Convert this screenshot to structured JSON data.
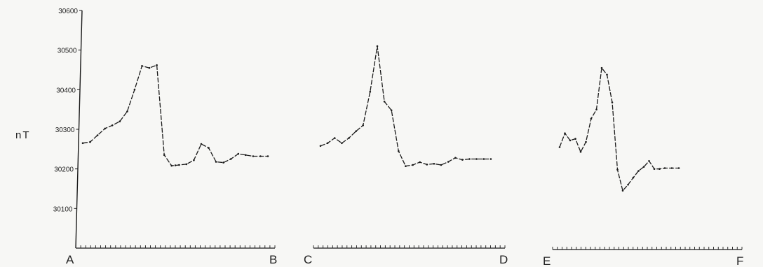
{
  "chart_data": {
    "type": "line",
    "title": "",
    "ylabel": "nT",
    "yticks": [
      "30100",
      "30200",
      "30300",
      "30400",
      "30500",
      "30600"
    ],
    "ylim": [
      30000,
      30600
    ],
    "grid": false,
    "colors": {
      "line": "#1a1a1a",
      "axis": "#1a1a1a"
    },
    "profiles": [
      {
        "start_label": "A",
        "end_label": "B",
        "ticks": 40,
        "x": [
          0,
          0.04,
          0.08,
          0.12,
          0.16,
          0.2,
          0.24,
          0.28,
          0.32,
          0.36,
          0.4,
          0.44,
          0.48,
          0.5,
          0.52,
          0.56,
          0.6,
          0.64,
          0.68,
          0.72,
          0.76,
          0.8,
          0.84,
          0.88,
          0.92,
          0.96,
          1.0
        ],
        "y": [
          30265,
          30268,
          30285,
          30302,
          30310,
          30320,
          30345,
          30400,
          30460,
          30455,
          30462,
          30235,
          30208,
          30209,
          30210,
          30212,
          30222,
          30263,
          30253,
          30218,
          30216,
          30225,
          30238,
          30235,
          30232,
          30232,
          30232
        ]
      },
      {
        "start_label": "C",
        "end_label": "D",
        "ticks": 40,
        "x": [
          0,
          0.04,
          0.08,
          0.12,
          0.16,
          0.2,
          0.24,
          0.28,
          0.32,
          0.36,
          0.4,
          0.44,
          0.48,
          0.52,
          0.56,
          0.6,
          0.64,
          0.68,
          0.72,
          0.76,
          0.8,
          0.84,
          0.88,
          0.92,
          0.96
        ],
        "y": [
          30258,
          30265,
          30278,
          30265,
          30278,
          30295,
          30310,
          30395,
          30510,
          30370,
          30348,
          30245,
          30207,
          30210,
          30217,
          30211,
          30213,
          30210,
          30218,
          30228,
          30223,
          30225,
          30225,
          30225,
          30225
        ]
      },
      {
        "start_label": "E",
        "end_label": "F",
        "ticks": 40,
        "x": [
          0,
          0.03,
          0.06,
          0.09,
          0.12,
          0.15,
          0.18,
          0.21,
          0.24,
          0.27,
          0.3,
          0.33,
          0.36,
          0.39,
          0.42,
          0.45,
          0.48,
          0.51,
          0.54,
          0.57,
          0.6,
          0.64,
          0.68
        ],
        "y": [
          30255,
          30290,
          30272,
          30276,
          30243,
          30268,
          30327,
          30350,
          30455,
          30438,
          30368,
          30198,
          30145,
          30160,
          30178,
          30195,
          30205,
          30220,
          30200,
          30200,
          30202,
          30202,
          30202
        ]
      }
    ]
  }
}
